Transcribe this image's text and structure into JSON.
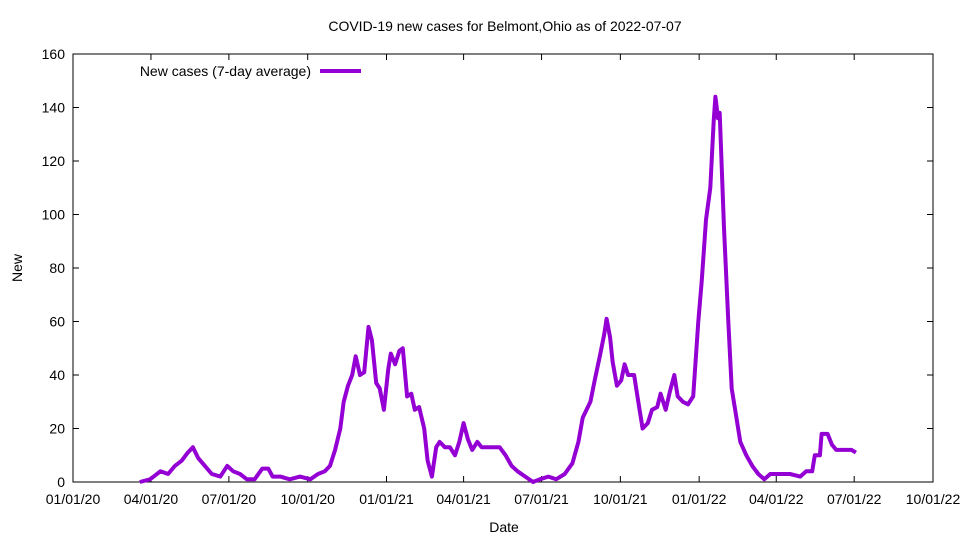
{
  "chart_data": {
    "type": "line",
    "title": "COVID-19 new cases for Belmont,Ohio as of 2022-07-07",
    "xlabel": "Date",
    "ylabel": "New",
    "ylim": [
      0,
      160
    ],
    "yticks": [
      0,
      20,
      40,
      60,
      80,
      100,
      120,
      140,
      160
    ],
    "xlim_days_since_2020_01_01": [
      0,
      1004
    ],
    "xticks": [
      {
        "label": "01/01/20",
        "day": 0
      },
      {
        "label": "04/01/20",
        "day": 91
      },
      {
        "label": "07/01/20",
        "day": 182
      },
      {
        "label": "10/01/20",
        "day": 274
      },
      {
        "label": "01/01/21",
        "day": 366
      },
      {
        "label": "04/01/21",
        "day": 456
      },
      {
        "label": "07/01/21",
        "day": 547
      },
      {
        "label": "10/01/21",
        "day": 639
      },
      {
        "label": "01/01/22",
        "day": 731
      },
      {
        "label": "04/01/22",
        "day": 821
      },
      {
        "label": "07/01/22",
        "day": 912
      },
      {
        "label": "10/01/22",
        "day": 1004
      }
    ],
    "legend": {
      "position": "top-left"
    },
    "grid": false,
    "series": [
      {
        "name": "New cases (7-day average)",
        "color": "#9400d3",
        "x_days_since_2020_01_01": [
          78,
          90,
          102,
          111,
          119,
          127,
          134,
          140,
          146,
          154,
          162,
          172,
          180,
          187,
          195,
          203,
          212,
          221,
          228,
          233,
          242,
          253,
          265,
          277,
          286,
          294,
          300,
          306,
          312,
          316,
          321,
          326,
          330,
          335,
          340,
          345,
          349,
          354,
          358,
          363,
          368,
          371,
          376,
          381,
          385,
          390,
          395,
          399,
          404,
          410,
          414,
          419,
          424,
          428,
          434,
          440,
          446,
          451,
          456,
          461,
          466,
          472,
          477,
          487,
          498,
          505,
          512,
          519,
          528,
          537,
          545,
          555,
          564,
          574,
          583,
          590,
          595,
          604,
          609,
          615,
          620,
          623,
          627,
          630,
          635,
          640,
          644,
          648,
          655,
          660,
          665,
          671,
          676,
          682,
          686,
          692,
          697,
          702,
          706,
          712,
          718,
          724,
          730,
          734,
          739,
          744,
          748,
          750,
          753,
          755,
          760,
          765,
          769,
          774,
          779,
          786,
          793,
          800,
          807,
          814,
          825,
          837,
          849,
          856,
          863,
          866,
          872,
          874,
          881,
          886,
          891,
          901,
          909,
          914
        ],
        "values": [
          0,
          1,
          4,
          3,
          6,
          8,
          11,
          13,
          9,
          6,
          3,
          2,
          6,
          4,
          3,
          1,
          1,
          5,
          5,
          2,
          2,
          1,
          2,
          1,
          3,
          4,
          6,
          12,
          20,
          30,
          36,
          40,
          47,
          40,
          41,
          58,
          53,
          37,
          35,
          27,
          42,
          48,
          44,
          49,
          50,
          32,
          33,
          27,
          28,
          20,
          8,
          2,
          13,
          15,
          13,
          13,
          10,
          15,
          22,
          16,
          12,
          15,
          13,
          13,
          13,
          10,
          6,
          4,
          2,
          0,
          1,
          2,
          1,
          3,
          7,
          15,
          24,
          30,
          38,
          47,
          55,
          61,
          54,
          45,
          36,
          38,
          44,
          40,
          40,
          30,
          20,
          22,
          27,
          28,
          33,
          27,
          34,
          40,
          32,
          30,
          29,
          32,
          60,
          75,
          98,
          110,
          135,
          144,
          136,
          138,
          95,
          60,
          35,
          25,
          15,
          10,
          6,
          3,
          1,
          3,
          3,
          3,
          2,
          4,
          4,
          10,
          10,
          18,
          18,
          14,
          12,
          12,
          12,
          11
        ]
      }
    ]
  }
}
